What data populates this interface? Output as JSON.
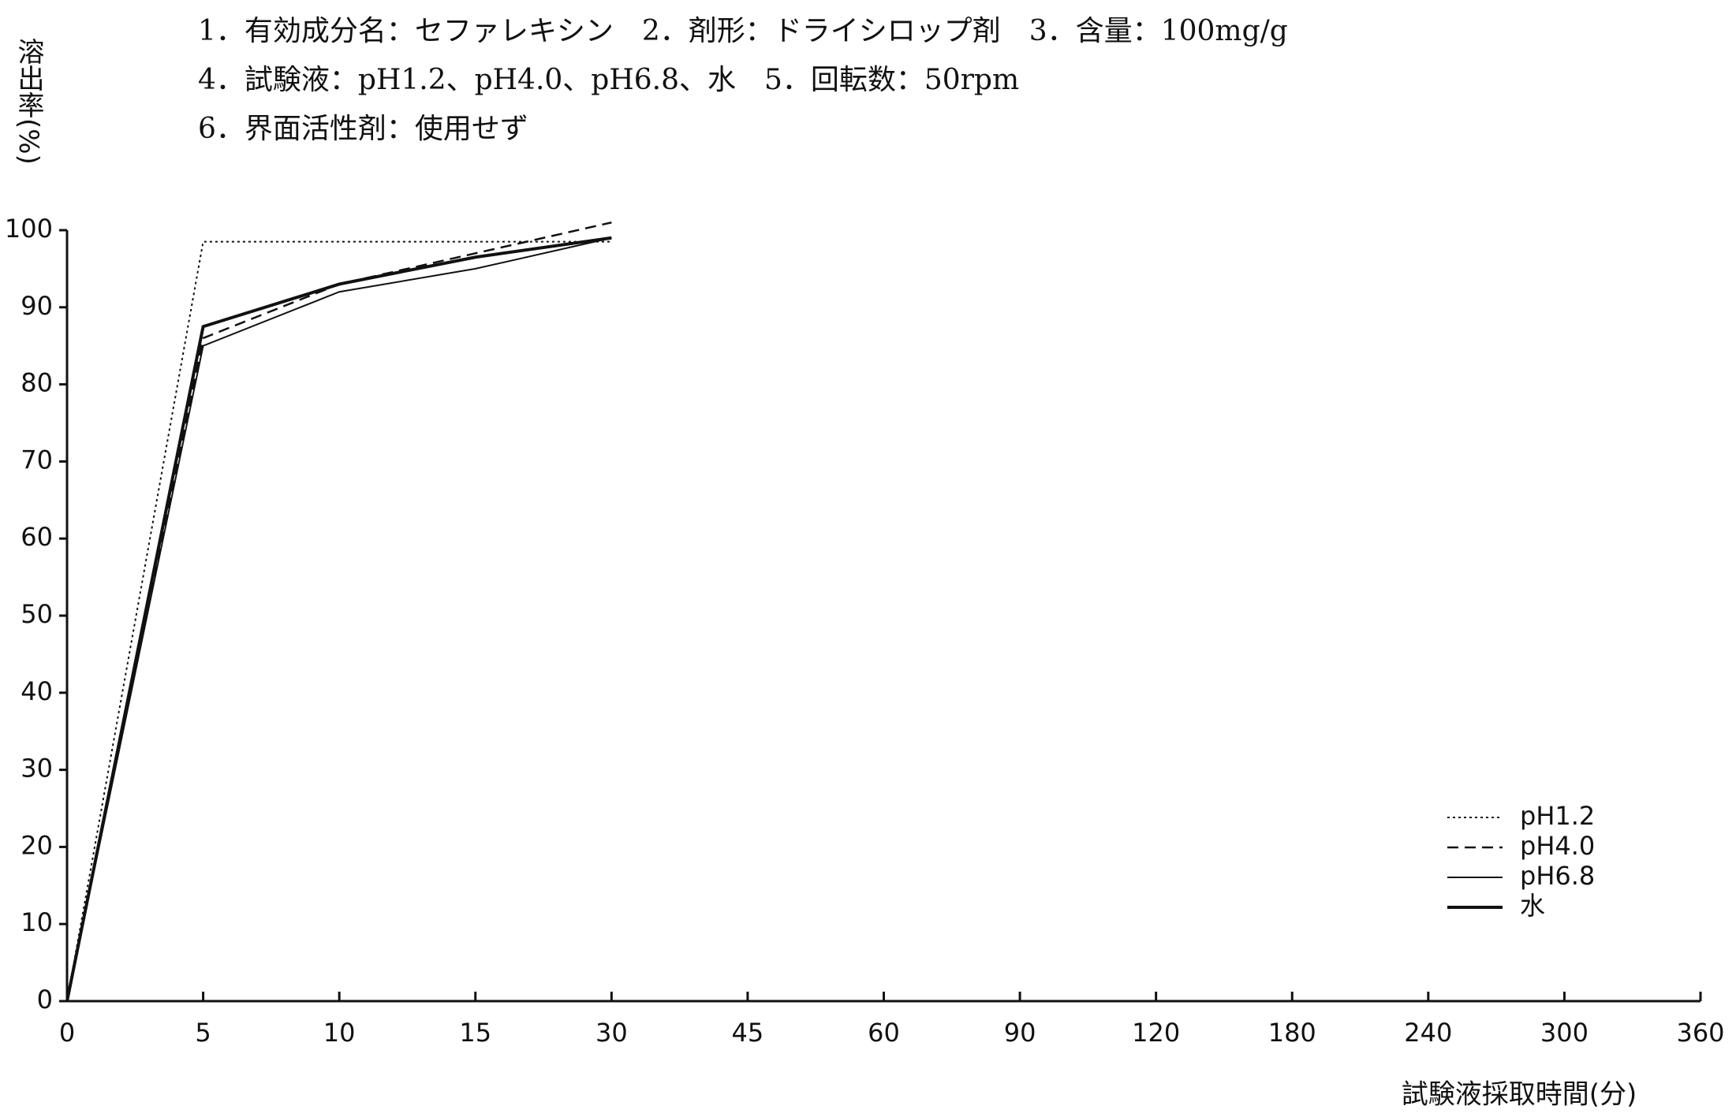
{
  "chart_data": {
    "type": "line",
    "title_lines": [
      "1．有効成分名：セファレキシン　2．剤形：ドライシロップ剤　3．含量：100mg/g",
      "4．試験液：pH1.2、pH4.0、pH6.8、水　5．回転数：50rpm",
      "6．界面活性剤：使用せず"
    ],
    "y_label": "溶出率(%)",
    "x_label": "試験液採取時間(分)",
    "categories": [
      "0",
      "5",
      "10",
      "15",
      "30",
      "45",
      "60",
      "90",
      "120",
      "180",
      "240",
      "300",
      "360"
    ],
    "ylim": [
      0,
      100
    ],
    "yticks": [
      0,
      10,
      20,
      30,
      40,
      50,
      60,
      70,
      80,
      90,
      100
    ],
    "grid": false,
    "legend": "lower right",
    "series": [
      {
        "name": "pH1.2",
        "color": "#111111",
        "linestyle": "dotted",
        "linewidth": 2,
        "values": [
          0,
          98.5,
          98.5,
          98.5,
          98.5,
          null,
          null,
          null,
          null,
          null,
          null,
          null,
          null
        ]
      },
      {
        "name": "pH4.0",
        "color": "#111111",
        "linestyle": "dashed",
        "linewidth": 2.5,
        "values": [
          0,
          86,
          93,
          97,
          101,
          null,
          null,
          null,
          null,
          null,
          null,
          null,
          null
        ]
      },
      {
        "name": "pH6.8",
        "color": "#111111",
        "linestyle": "solid",
        "linewidth": 2,
        "values": [
          0,
          85,
          92,
          95,
          99,
          null,
          null,
          null,
          null,
          null,
          null,
          null,
          null
        ]
      },
      {
        "name": "水",
        "color": "#111111",
        "linestyle": "solid",
        "linewidth": 4,
        "values": [
          0,
          87.5,
          93,
          96.5,
          99,
          null,
          null,
          null,
          null,
          null,
          null,
          null,
          null
        ]
      }
    ]
  }
}
